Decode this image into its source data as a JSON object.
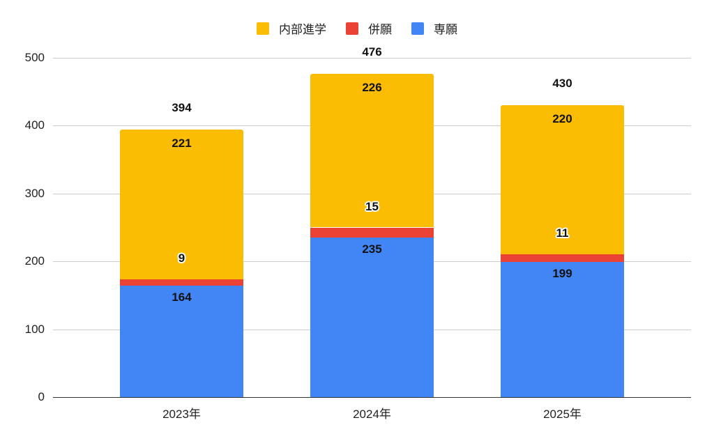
{
  "chart_data": {
    "type": "bar",
    "stacked": true,
    "title": "",
    "xlabel": "",
    "ylabel": "",
    "categories": [
      "2023年",
      "2024年",
      "2025年"
    ],
    "series": [
      {
        "name": "専願",
        "color": "#4285F4",
        "values": [
          164,
          235,
          199
        ]
      },
      {
        "name": "併願",
        "color": "#EA4335",
        "values": [
          9,
          15,
          11
        ]
      },
      {
        "name": "内部進学",
        "color": "#FBBC04",
        "values": [
          221,
          226,
          220
        ]
      }
    ],
    "totals": [
      394,
      476,
      430
    ],
    "ylim": [
      0,
      500
    ],
    "yticks": [
      "0",
      "100",
      "200",
      "300",
      "400",
      "500"
    ],
    "grid": true,
    "legend_position": "top",
    "legend_order": [
      "内部進学",
      "併願",
      "専願"
    ]
  },
  "legend": [
    {
      "label": "内部進学",
      "color": "#FBBC04"
    },
    {
      "label": "併願",
      "color": "#EA4335"
    },
    {
      "label": "専願",
      "color": "#4285F4"
    }
  ]
}
